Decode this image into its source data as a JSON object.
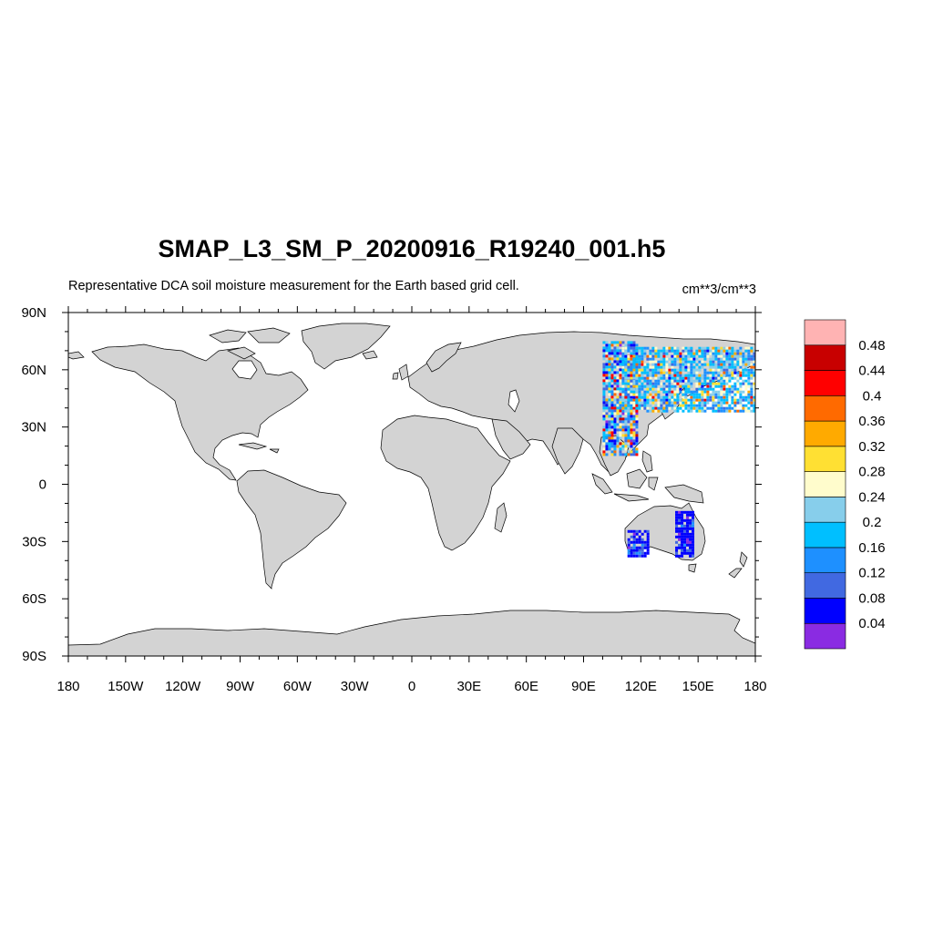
{
  "title": "SMAP_L3_SM_P_20200916_R19240_001.h5",
  "subtitle": "Representative DCA soil moisture measurement for the Earth based grid cell.",
  "units": "cm**3/cm**3",
  "map": {
    "projection": "cylindrical equidistant",
    "lon_range": [
      -180,
      180
    ],
    "lat_range": [
      -90,
      90
    ],
    "land_color": "#d3d3d3",
    "ocean_color": "#ffffff",
    "lon_ticks": [
      {
        "value": -180,
        "label": "180"
      },
      {
        "value": -150,
        "label": "150W"
      },
      {
        "value": -120,
        "label": "120W"
      },
      {
        "value": -90,
        "label": "90W"
      },
      {
        "value": -60,
        "label": "60W"
      },
      {
        "value": -30,
        "label": "30W"
      },
      {
        "value": 0,
        "label": "0"
      },
      {
        "value": 30,
        "label": "30E"
      },
      {
        "value": 60,
        "label": "60E"
      },
      {
        "value": 90,
        "label": "90E"
      },
      {
        "value": 120,
        "label": "120E"
      },
      {
        "value": 150,
        "label": "150E"
      },
      {
        "value": 180,
        "label": "180"
      }
    ],
    "lat_ticks": [
      {
        "value": 90,
        "label": "90N"
      },
      {
        "value": 60,
        "label": "60N"
      },
      {
        "value": 30,
        "label": "30N"
      },
      {
        "value": 0,
        "label": "0"
      },
      {
        "value": -30,
        "label": "30S"
      },
      {
        "value": -60,
        "label": "60S"
      },
      {
        "value": -90,
        "label": "90S"
      }
    ]
  },
  "colorbar": {
    "colors": [
      "#8a2be2",
      "#0000ff",
      "#4169e1",
      "#1e90ff",
      "#00bfff",
      "#87ceeb",
      "#fffccc",
      "#ffe033",
      "#ffaa00",
      "#ff6a00",
      "#ff0000",
      "#c80000",
      "#ffb3b3"
    ],
    "labels": [
      "0.04",
      "0.08",
      "0.12",
      "0.16",
      "0.2",
      "0.24",
      "0.28",
      "0.32",
      "0.36",
      "0.4",
      "0.44",
      "0.48"
    ]
  },
  "swaths": [
    {
      "region": "east-asia-swath",
      "lon_range": [
        100,
        118
      ],
      "lat_range": [
        15,
        75
      ]
    },
    {
      "region": "east-russia-china",
      "lon_range": [
        110,
        180
      ],
      "lat_range": [
        38,
        72
      ]
    },
    {
      "region": "australia-west",
      "lon_range": [
        113,
        124
      ],
      "lat_range": [
        -37,
        -24
      ]
    },
    {
      "region": "australia-east",
      "lon_range": [
        138,
        147
      ],
      "lat_range": [
        -37,
        -14
      ]
    }
  ]
}
